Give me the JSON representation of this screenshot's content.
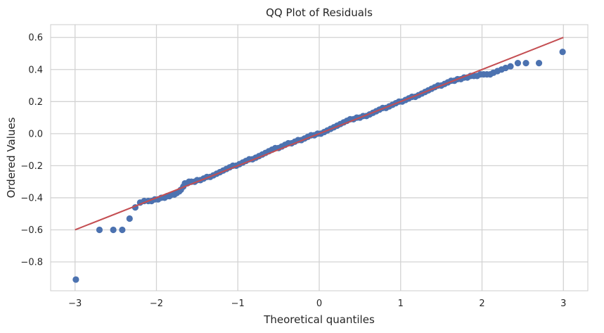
{
  "chart_data": {
    "type": "scatter",
    "title": "QQ Plot of Residuals",
    "xlabel": "Theoretical quantiles",
    "ylabel": "Ordered Values",
    "xlim": [
      -3.3,
      3.3
    ],
    "ylim": [
      -0.98,
      0.68
    ],
    "x_ticks": [
      -3,
      -2,
      -1,
      0,
      1,
      2,
      3
    ],
    "x_tick_labels": [
      "−3",
      "−2",
      "−1",
      "0",
      "1",
      "2",
      "3"
    ],
    "y_ticks": [
      -0.8,
      -0.6,
      -0.4,
      -0.2,
      0.0,
      0.2,
      0.4,
      0.6
    ],
    "y_tick_labels": [
      "−0.8",
      "−0.6",
      "−0.4",
      "−0.2",
      "0.0",
      "0.2",
      "0.4",
      "0.6"
    ],
    "grid": true,
    "marker_color": "#4c72b0",
    "line_color": "#c44e52",
    "fit_line": {
      "x": [
        -3.0,
        3.0
      ],
      "y": [
        -0.6,
        0.6
      ]
    },
    "points": [
      [
        -2.99,
        -0.91
      ],
      [
        -2.7,
        -0.6
      ],
      [
        -2.53,
        -0.6
      ],
      [
        -2.42,
        -0.6
      ],
      [
        -2.33,
        -0.53
      ],
      [
        -2.26,
        -0.46
      ],
      [
        -2.2,
        -0.43
      ],
      [
        -2.15,
        -0.42
      ],
      [
        -2.1,
        -0.42
      ],
      [
        -2.06,
        -0.42
      ],
      [
        -2.02,
        -0.41
      ],
      [
        -1.98,
        -0.41
      ],
      [
        -1.94,
        -0.4
      ],
      [
        -1.9,
        -0.4
      ],
      [
        -1.87,
        -0.39
      ],
      [
        -1.84,
        -0.39
      ],
      [
        -1.81,
        -0.38
      ],
      [
        -1.78,
        -0.38
      ],
      [
        -1.75,
        -0.37
      ],
      [
        -1.72,
        -0.36
      ],
      [
        -1.7,
        -0.35
      ],
      [
        -1.67,
        -0.33
      ],
      [
        -1.65,
        -0.31
      ],
      [
        -1.62,
        -0.31
      ],
      [
        -1.6,
        -0.3
      ],
      [
        -1.57,
        -0.3
      ],
      [
        -1.53,
        -0.3
      ],
      [
        -1.5,
        -0.29
      ],
      [
        -1.46,
        -0.29
      ],
      [
        -1.42,
        -0.28
      ],
      [
        -1.38,
        -0.27
      ],
      [
        -1.34,
        -0.27
      ],
      [
        -1.3,
        -0.26
      ],
      [
        -1.26,
        -0.25
      ],
      [
        -1.22,
        -0.24
      ],
      [
        -1.18,
        -0.23
      ],
      [
        -1.14,
        -0.22
      ],
      [
        -1.1,
        -0.21
      ],
      [
        -1.06,
        -0.2
      ],
      [
        -1.02,
        -0.2
      ],
      [
        -0.98,
        -0.19
      ],
      [
        -0.94,
        -0.18
      ],
      [
        -0.9,
        -0.17
      ],
      [
        -0.86,
        -0.16
      ],
      [
        -0.82,
        -0.16
      ],
      [
        -0.78,
        -0.15
      ],
      [
        -0.74,
        -0.14
      ],
      [
        -0.7,
        -0.13
      ],
      [
        -0.66,
        -0.12
      ],
      [
        -0.62,
        -0.11
      ],
      [
        -0.58,
        -0.1
      ],
      [
        -0.54,
        -0.09
      ],
      [
        -0.5,
        -0.09
      ],
      [
        -0.46,
        -0.08
      ],
      [
        -0.42,
        -0.07
      ],
      [
        -0.38,
        -0.06
      ],
      [
        -0.34,
        -0.06
      ],
      [
        -0.3,
        -0.05
      ],
      [
        -0.26,
        -0.04
      ],
      [
        -0.22,
        -0.04
      ],
      [
        -0.18,
        -0.03
      ],
      [
        -0.14,
        -0.02
      ],
      [
        -0.1,
        -0.01
      ],
      [
        -0.06,
        -0.01
      ],
      [
        -0.02,
        0.0
      ],
      [
        0.02,
        0.0
      ],
      [
        0.06,
        0.01
      ],
      [
        0.1,
        0.02
      ],
      [
        0.14,
        0.03
      ],
      [
        0.18,
        0.04
      ],
      [
        0.22,
        0.05
      ],
      [
        0.26,
        0.06
      ],
      [
        0.3,
        0.07
      ],
      [
        0.34,
        0.08
      ],
      [
        0.38,
        0.09
      ],
      [
        0.42,
        0.09
      ],
      [
        0.46,
        0.1
      ],
      [
        0.5,
        0.1
      ],
      [
        0.54,
        0.11
      ],
      [
        0.58,
        0.11
      ],
      [
        0.62,
        0.12
      ],
      [
        0.66,
        0.13
      ],
      [
        0.7,
        0.14
      ],
      [
        0.74,
        0.15
      ],
      [
        0.78,
        0.16
      ],
      [
        0.82,
        0.16
      ],
      [
        0.86,
        0.17
      ],
      [
        0.9,
        0.18
      ],
      [
        0.94,
        0.19
      ],
      [
        0.98,
        0.2
      ],
      [
        1.02,
        0.2
      ],
      [
        1.06,
        0.21
      ],
      [
        1.1,
        0.22
      ],
      [
        1.14,
        0.23
      ],
      [
        1.18,
        0.23
      ],
      [
        1.22,
        0.24
      ],
      [
        1.26,
        0.25
      ],
      [
        1.3,
        0.26
      ],
      [
        1.34,
        0.27
      ],
      [
        1.38,
        0.28
      ],
      [
        1.42,
        0.29
      ],
      [
        1.46,
        0.3
      ],
      [
        1.5,
        0.3
      ],
      [
        1.54,
        0.31
      ],
      [
        1.58,
        0.32
      ],
      [
        1.62,
        0.33
      ],
      [
        1.66,
        0.33
      ],
      [
        1.7,
        0.34
      ],
      [
        1.74,
        0.34
      ],
      [
        1.78,
        0.35
      ],
      [
        1.82,
        0.35
      ],
      [
        1.86,
        0.36
      ],
      [
        1.9,
        0.36
      ],
      [
        1.94,
        0.36
      ],
      [
        1.98,
        0.37
      ],
      [
        2.02,
        0.37
      ],
      [
        2.06,
        0.37
      ],
      [
        2.1,
        0.37
      ],
      [
        2.14,
        0.38
      ],
      [
        2.19,
        0.39
      ],
      [
        2.24,
        0.4
      ],
      [
        2.29,
        0.41
      ],
      [
        2.35,
        0.42
      ],
      [
        2.44,
        0.44
      ],
      [
        2.54,
        0.44
      ],
      [
        2.7,
        0.44
      ],
      [
        2.99,
        0.51
      ]
    ]
  }
}
